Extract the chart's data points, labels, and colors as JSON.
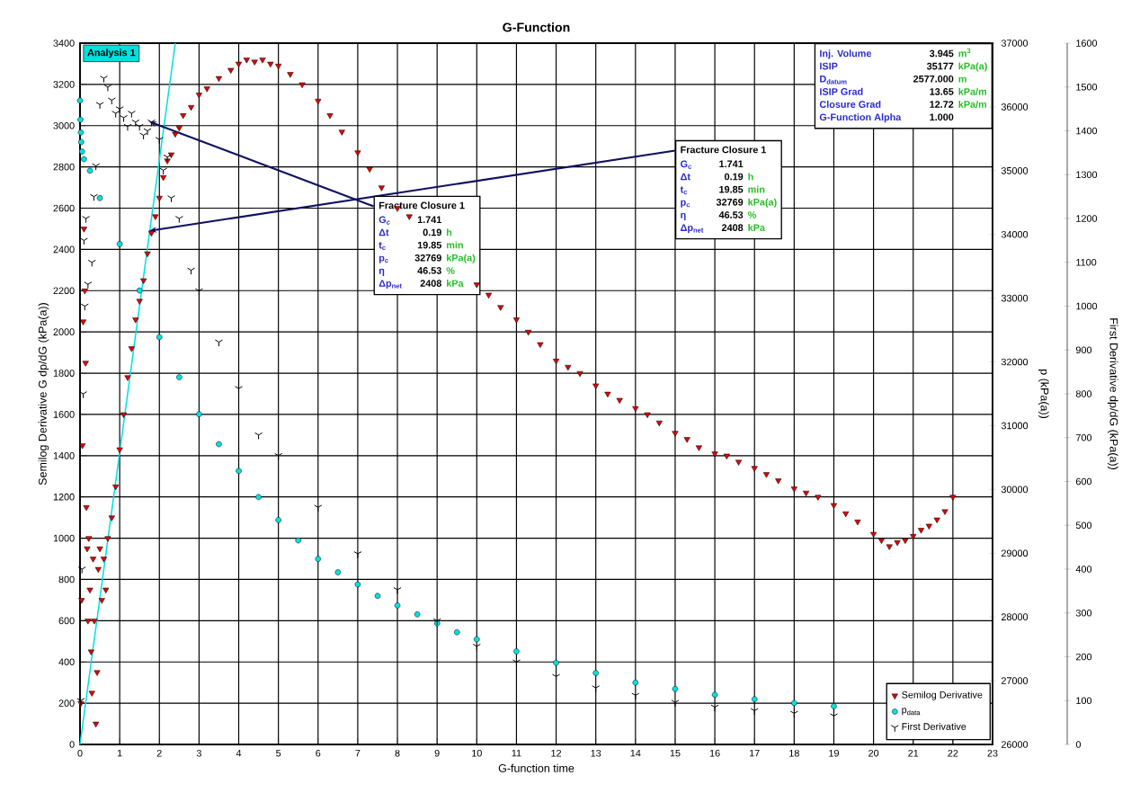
{
  "chart_data": {
    "type": "scatter",
    "title": "G-Function",
    "xlabel": "G-function time",
    "ylabel": "Semilog Derivative  G dp/dG  (kPa(a))",
    "y2label": "p  (kPa(a))",
    "y3label": "First Derivative  dp/dG  (kPa(a))",
    "xlim": [
      0,
      23
    ],
    "xticks": [
      0,
      1,
      2,
      3,
      4,
      5,
      6,
      7,
      8,
      9,
      10,
      11,
      12,
      13,
      14,
      15,
      16,
      17,
      18,
      19,
      20,
      21,
      22,
      23
    ],
    "ylim": [
      0,
      3400
    ],
    "yticks": [
      0,
      200,
      400,
      600,
      800,
      1000,
      1200,
      1400,
      1600,
      1800,
      2000,
      2200,
      2400,
      2600,
      2800,
      3000,
      3200,
      3400
    ],
    "y2lim": [
      26000,
      37000
    ],
    "y2ticks": [
      26000,
      27000,
      28000,
      29000,
      30000,
      31000,
      32000,
      33000,
      34000,
      35000,
      36000,
      37000
    ],
    "y3lim": [
      0,
      1600
    ],
    "y3ticks": [
      0,
      100,
      200,
      300,
      400,
      500,
      600,
      700,
      800,
      900,
      1000,
      1100,
      1200,
      1300,
      1400,
      1500,
      1600
    ],
    "grid": true,
    "legend": "bottom right",
    "series": [
      {
        "name": "Semilog Derivative",
        "color": "#e00000",
        "marker": "triangle",
        "x": [
          0.02,
          0.04,
          0.06,
          0.08,
          0.1,
          0.12,
          0.14,
          0.16,
          0.18,
          0.2,
          0.22,
          0.25,
          0.28,
          0.3,
          0.33,
          0.36,
          0.4,
          0.43,
          0.46,
          0.5,
          0.55,
          0.6,
          0.65,
          0.7,
          0.8,
          0.9,
          1.0,
          1.1,
          1.2,
          1.3,
          1.4,
          1.5,
          1.6,
          1.7,
          1.8,
          1.9,
          2.0,
          2.1,
          2.2,
          2.3,
          2.4,
          2.5,
          2.6,
          2.8,
          3.0,
          3.2,
          3.5,
          3.8,
          4.0,
          4.2,
          4.4,
          4.6,
          4.8,
          5.0,
          5.3,
          5.6,
          6.0,
          6.3,
          6.6,
          7.0,
          7.3,
          7.6,
          8.0,
          8.3,
          10.0,
          10.3,
          10.6,
          11.0,
          11.3,
          11.6,
          12.0,
          12.3,
          12.6,
          13.0,
          13.3,
          13.6,
          14.0,
          14.3,
          14.6,
          15.0,
          15.3,
          15.6,
          16.0,
          16.3,
          16.6,
          17.0,
          17.3,
          17.6,
          18.0,
          18.3,
          18.6,
          19.0,
          19.3,
          19.6,
          20.0,
          20.2,
          20.4,
          20.6,
          20.8,
          21.0,
          21.2,
          21.4,
          21.6,
          21.8,
          22.0
        ],
        "values": [
          200,
          700,
          1450,
          2050,
          2500,
          2200,
          1850,
          1150,
          950,
          600,
          1000,
          750,
          450,
          250,
          900,
          600,
          100,
          350,
          850,
          950,
          700,
          900,
          750,
          1000,
          1100,
          1250,
          1430,
          1600,
          1780,
          1920,
          2060,
          2150,
          2250,
          2380,
          2480,
          2560,
          2650,
          2750,
          2830,
          2860,
          2960,
          2990,
          3050,
          3090,
          3150,
          3180,
          3230,
          3270,
          3300,
          3320,
          3310,
          3320,
          3300,
          3290,
          3250,
          3200,
          3120,
          3050,
          2970,
          2870,
          2790,
          2700,
          2600,
          2560,
          2230,
          2180,
          2120,
          2060,
          2000,
          1940,
          1860,
          1830,
          1800,
          1740,
          1700,
          1670,
          1630,
          1600,
          1560,
          1510,
          1480,
          1440,
          1410,
          1400,
          1370,
          1340,
          1310,
          1280,
          1240,
          1220,
          1200,
          1160,
          1120,
          1080,
          1020,
          990,
          960,
          980,
          990,
          1010,
          1040,
          1060,
          1090,
          1130,
          1200
        ]
      },
      {
        "name": "p$_{data}$",
        "color": "#00e0e0",
        "marker": "circle",
        "axis": "y2",
        "x": [
          0,
          0.01,
          0.02,
          0.03,
          0.05,
          0.1,
          0.25,
          0.5,
          1,
          1.5,
          2,
          2.5,
          3,
          3.5,
          4,
          4.5,
          5,
          5.5,
          6,
          6.5,
          7,
          7.5,
          8,
          8.5,
          9,
          9.5,
          10,
          11,
          12,
          13,
          14,
          15,
          16,
          17,
          18,
          19
        ],
        "values": [
          36100,
          35800,
          35600,
          35450,
          35300,
          35180,
          35000,
          34570,
          33850,
          33120,
          32390,
          31760,
          31180,
          30710,
          30290,
          29880,
          29520,
          29200,
          28910,
          28700,
          28510,
          28330,
          28180,
          28040,
          27900,
          27760,
          27650,
          27460,
          27280,
          27120,
          26970,
          26870,
          26780,
          26710,
          26650,
          26600
        ]
      },
      {
        "name": "First Derivative",
        "color": "#000000",
        "marker": "cross",
        "axis": "y3",
        "x": [
          0.02,
          0.05,
          0.08,
          0.1,
          0.12,
          0.15,
          0.2,
          0.3,
          0.35,
          0.4,
          0.5,
          0.6,
          0.7,
          0.8,
          0.9,
          1.0,
          1.1,
          1.2,
          1.3,
          1.4,
          1.5,
          1.6,
          1.7,
          1.8,
          2.0,
          2.1,
          2.2,
          2.3,
          2.5,
          2.8,
          3,
          3.5,
          4,
          4.5,
          5,
          6,
          7,
          8,
          9,
          10,
          11,
          12,
          13,
          14,
          15,
          16,
          17,
          18,
          19
        ],
        "values": [
          100,
          400,
          800,
          1150,
          1000,
          1200,
          1050,
          1100,
          1250,
          1320,
          1460,
          1520,
          1500,
          1470,
          1440,
          1450,
          1430,
          1410,
          1440,
          1420,
          1410,
          1390,
          1400,
          1420,
          1380,
          1310,
          1340,
          1247,
          1200,
          1082,
          1035,
          918,
          812,
          706,
          659,
          541,
          435,
          353,
          282,
          224,
          188,
          155,
          129,
          112,
          96,
          85,
          77,
          71,
          65
        ]
      },
      {
        "type": "line",
        "color": "#00e0e0",
        "x": [
          0,
          2.4
        ],
        "values": [
          0,
          3400
        ]
      }
    ],
    "annotations": [
      "Analysis 1",
      "Inj. Volume",
      "3.945",
      "m$^{3}$",
      "ISIP",
      "35177",
      "kPa(a)",
      "D$_{datum}$",
      "2577.000",
      "m",
      "ISIP Grad",
      "13.65",
      "kPa/m",
      "Closure Grad",
      "12.72",
      "kPa/m",
      "G-Function Alpha",
      "1.000",
      {
        "text": "Fracture Closure 1",
        "x": 1.741,
        "y": 3020
      },
      "G$_{c}$",
      "1.741",
      "Δt",
      "0.19",
      "h",
      "t$_{c}$",
      "19.85",
      "min",
      "p$_{c}$",
      "32769",
      "kPa(a)",
      "η",
      "46.53",
      "%",
      "Δp$_{net}$",
      "2408",
      "kPa",
      {
        "text": "Fracture Closure 1",
        "x": 1.741,
        "y": 2490
      },
      "G$_{c}$",
      "1.741",
      "Δt",
      "0.19",
      "h",
      "t$_{c}$",
      "19.85",
      "min",
      "p$_{c}$",
      "32769",
      "kPa(a)",
      "η",
      "46.53",
      "%",
      "Δp$_{net}$",
      "2408",
      "kPa"
    ]
  }
}
